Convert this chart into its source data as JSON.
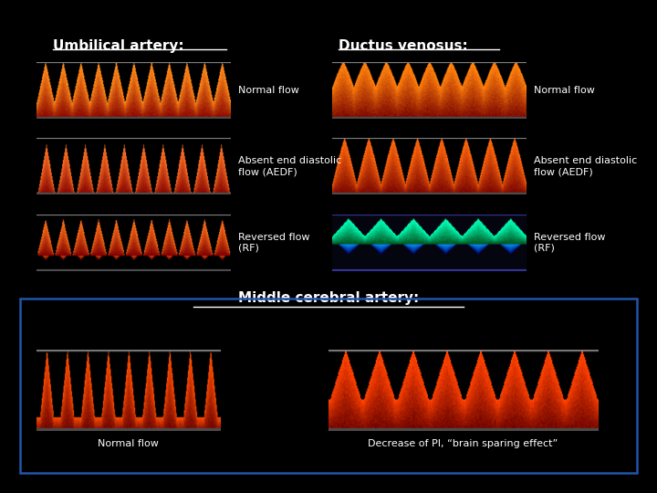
{
  "bg_color": "#000000",
  "title_umbilical": "Umbilical artery:",
  "title_ductus": "Ductus venosus:",
  "title_mca": "Middle cerebral artery:",
  "labels_left": [
    "Normal flow",
    "Absent end diastolic\nflow (AEDF)",
    "Reversed flow\n(RF)"
  ],
  "labels_right": [
    "Normal flow",
    "Absent end diastolic\nflow (AEDF)",
    "Reversed flow\n(RF)"
  ],
  "label_mca_left": "Normal flow",
  "label_mca_right": "Decrease of PI, “brain sparing effect”",
  "text_color": "#ffffff",
  "box_edge_color": "#2255aa",
  "font_size_title": 11,
  "font_size_label": 8,
  "font_size_mca_label": 8
}
